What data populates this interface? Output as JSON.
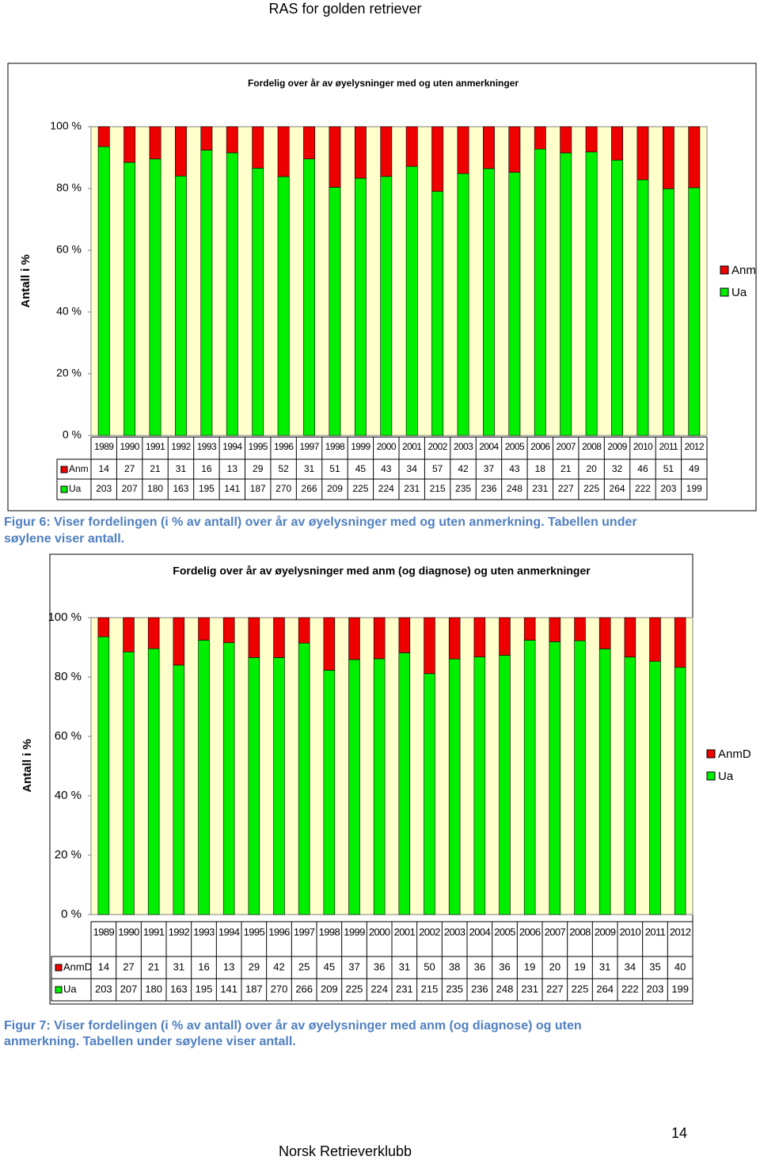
{
  "header": "RAS for golden retriever",
  "captions": [
    "Figur 6: Viser fordelingen (i % av antall) over år av øyelysninger med og uten anmerkning. Tabellen under søylene viser antall.",
    "Figur 7: Viser fordelingen (i % av antall) over år av øyelysninger med anm (og diagnose) og uten anmerkning. Tabellen under søylene viser antall."
  ],
  "page_number": "14",
  "footer": "Norsk Retrieverklubb",
  "chart_data": [
    {
      "type": "bar",
      "stacked": "percent",
      "title": "Fordelig over år av øyelysninger med og uten anmerkninger",
      "y_label": "Antall i %",
      "categories": [
        "1989",
        "1990",
        "1991",
        "1992",
        "1993",
        "1994",
        "1995",
        "1996",
        "1997",
        "1998",
        "1999",
        "2000",
        "2001",
        "2002",
        "2003",
        "2004",
        "2005",
        "2006",
        "2007",
        "2008",
        "2009",
        "2010",
        "2011",
        "2012"
      ],
      "series": [
        {
          "name": "Anm",
          "color": "#ee0000",
          "values": [
            14,
            27,
            21,
            31,
            16,
            13,
            29,
            52,
            31,
            51,
            45,
            43,
            34,
            57,
            42,
            37,
            43,
            18,
            21,
            20,
            32,
            46,
            51,
            49
          ]
        },
        {
          "name": "Ua",
          "color": "#00ee00",
          "values": [
            203,
            207,
            180,
            163,
            195,
            141,
            187,
            270,
            266,
            209,
            225,
            224,
            231,
            215,
            235,
            236,
            248,
            231,
            227,
            225,
            264,
            222,
            203,
            199
          ]
        }
      ],
      "ylim": [
        0,
        100
      ],
      "yticks": [
        {
          "value": 0,
          "label": "0 %"
        },
        {
          "value": 20,
          "label": "20 %"
        },
        {
          "value": 40,
          "label": "40 %"
        },
        {
          "value": 60,
          "label": "60 %"
        },
        {
          "value": 80,
          "label": "80 %"
        },
        {
          "value": 100,
          "label": "100 %"
        }
      ],
      "grid": false,
      "legend": "right",
      "background": "#ffffcc"
    },
    {
      "type": "bar",
      "stacked": "percent",
      "title": "Fordelig over år av øyelysninger med anm (og diagnose) og uten anmerkninger",
      "y_label": "Antall i %",
      "categories": [
        "1989",
        "1990",
        "1991",
        "1992",
        "1993",
        "1994",
        "1995",
        "1996",
        "1997",
        "1998",
        "1999",
        "2000",
        "2001",
        "2002",
        "2003",
        "2004",
        "2005",
        "2006",
        "2007",
        "2008",
        "2009",
        "2010",
        "2011",
        "2012"
      ],
      "series": [
        {
          "name": "AnmD",
          "color": "#ee0000",
          "values": [
            14,
            27,
            21,
            31,
            16,
            13,
            29,
            42,
            25,
            45,
            37,
            36,
            31,
            50,
            38,
            36,
            36,
            19,
            20,
            19,
            31,
            34,
            35,
            40
          ]
        },
        {
          "name": "Ua",
          "color": "#00ee00",
          "values": [
            203,
            207,
            180,
            163,
            195,
            141,
            187,
            270,
            266,
            209,
            225,
            224,
            231,
            215,
            235,
            236,
            248,
            231,
            227,
            225,
            264,
            222,
            203,
            199
          ]
        }
      ],
      "ylim": [
        0,
        100
      ],
      "yticks": [
        {
          "value": 0,
          "label": "0 %"
        },
        {
          "value": 20,
          "label": "20 %"
        },
        {
          "value": 40,
          "label": "40 %"
        },
        {
          "value": 60,
          "label": "60 %"
        },
        {
          "value": 80,
          "label": "80 %"
        },
        {
          "value": 100,
          "label": "100 %"
        }
      ],
      "grid": false,
      "legend": "right",
      "background": "#ffffcc"
    }
  ]
}
